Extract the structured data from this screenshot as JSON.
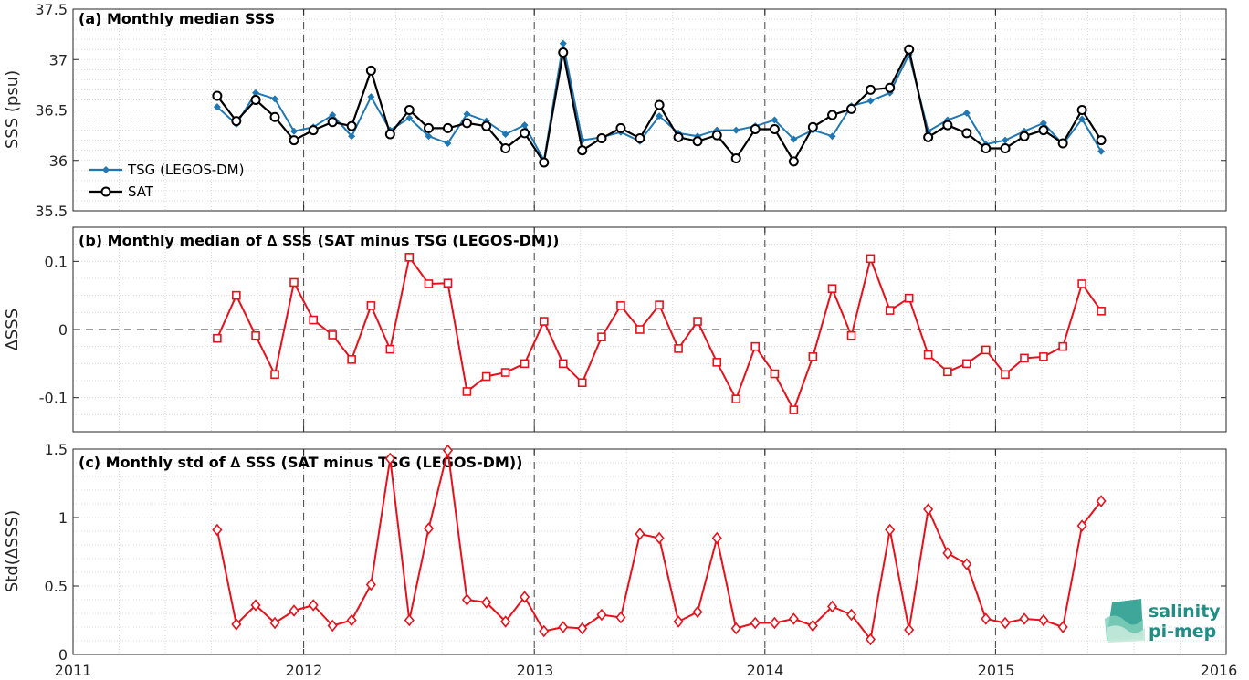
{
  "x_ticks": [
    "2011",
    "2012",
    "2013",
    "2014",
    "2015",
    "2016"
  ],
  "logo": {
    "line1": "salinity",
    "line2": "pi-mep"
  },
  "colors": {
    "tsg": "#1f77b4",
    "sat": "#000000",
    "delta": "#e8101a",
    "grid": "#d0d0d0",
    "axis": "#262626"
  },
  "chart_data": [
    {
      "type": "line",
      "title": "(a) Monthly median SSS",
      "ylabel": "SSS (psu)",
      "xlim": [
        2011,
        2016
      ],
      "ylim": [
        35.5,
        37.5
      ],
      "yticks": [
        "35.5",
        "36",
        "36.5",
        "37",
        "37.5"
      ],
      "grid": true,
      "legend": "left",
      "x": [
        2011.625,
        2011.708,
        2011.792,
        2011.875,
        2011.958,
        2012.042,
        2012.125,
        2012.208,
        2012.292,
        2012.375,
        2012.458,
        2012.542,
        2012.625,
        2012.708,
        2012.792,
        2012.875,
        2012.958,
        2013.042,
        2013.125,
        2013.208,
        2013.292,
        2013.375,
        2013.458,
        2013.542,
        2013.625,
        2013.708,
        2013.792,
        2013.875,
        2013.958,
        2014.042,
        2014.125,
        2014.208,
        2014.292,
        2014.375,
        2014.458,
        2014.542,
        2014.625,
        2014.708,
        2014.792,
        2014.875,
        2014.958,
        2015.042,
        2015.125,
        2015.208,
        2015.292,
        2015.375,
        2015.458
      ],
      "series": [
        {
          "name": "TSG (LEGOS-DM)",
          "marker": "dot",
          "values": [
            36.53,
            36.36,
            36.67,
            36.61,
            36.29,
            36.33,
            36.45,
            36.24,
            36.63,
            36.3,
            36.42,
            36.24,
            36.17,
            36.46,
            36.39,
            36.26,
            36.35,
            36.0,
            37.16,
            36.2,
            36.23,
            36.28,
            36.19,
            36.44,
            36.27,
            36.24,
            36.3,
            36.3,
            36.34,
            36.4,
            36.21,
            36.3,
            36.24,
            36.54,
            36.59,
            36.67,
            37.05,
            36.29,
            36.4,
            36.47,
            36.16,
            36.2,
            36.29,
            36.37,
            36.16,
            36.41,
            36.09
          ]
        },
        {
          "name": "SAT",
          "marker": "circle",
          "values": [
            36.64,
            36.39,
            36.6,
            36.43,
            36.2,
            36.3,
            36.38,
            36.34,
            36.89,
            36.26,
            36.5,
            36.32,
            36.32,
            36.37,
            36.34,
            36.12,
            36.27,
            35.98,
            37.07,
            36.1,
            36.22,
            36.32,
            36.22,
            36.55,
            36.23,
            36.19,
            36.25,
            36.02,
            36.31,
            36.31,
            35.99,
            36.33,
            36.45,
            36.51,
            36.7,
            36.72,
            37.1,
            36.23,
            36.35,
            36.27,
            36.12,
            36.12,
            36.24,
            36.3,
            36.17,
            36.5,
            36.2
          ]
        }
      ]
    },
    {
      "type": "line",
      "title": "(b) Monthly median of ∆ SSS (SAT minus TSG (LEGOS-DM))",
      "ylabel": "∆SSS",
      "xlim": [
        2011,
        2016
      ],
      "ylim": [
        -0.15,
        0.15
      ],
      "yticks": [
        "-0.1",
        "0",
        "0.1"
      ],
      "ytick_values": [
        -0.1,
        0,
        0.1
      ],
      "grid": true,
      "zero_line": true,
      "series": [
        {
          "marker": "square",
          "values": [
            -0.013,
            0.05,
            -0.009,
            -0.066,
            0.069,
            0.014,
            -0.008,
            -0.044,
            0.035,
            -0.029,
            0.106,
            0.067,
            0.068,
            -0.091,
            -0.069,
            -0.063,
            -0.05,
            0.012,
            -0.05,
            -0.078,
            -0.011,
            0.035,
            0.0,
            0.036,
            -0.028,
            0.012,
            -0.048,
            -0.102,
            -0.025,
            -0.065,
            -0.118,
            -0.04,
            0.06,
            -0.009,
            0.104,
            0.028,
            0.046,
            -0.037,
            -0.062,
            -0.05,
            -0.03,
            -0.066,
            -0.042,
            -0.04,
            -0.025,
            0.067,
            0.027
          ]
        }
      ]
    },
    {
      "type": "line",
      "title": "(c) Monthly std of ∆ SSS (SAT minus TSG (LEGOS-DM))",
      "ylabel": "Std(∆SSS)",
      "xlim": [
        2011,
        2016
      ],
      "ylim": [
        0,
        1.5
      ],
      "yticks": [
        "0",
        "0.5",
        "1",
        "1.5"
      ],
      "ytick_values": [
        0,
        0.5,
        1,
        1.5
      ],
      "grid": true,
      "series": [
        {
          "marker": "diamond",
          "values": [
            0.91,
            0.22,
            0.36,
            0.23,
            0.32,
            0.36,
            0.21,
            0.25,
            0.51,
            1.43,
            0.25,
            0.92,
            1.49,
            0.4,
            0.38,
            0.24,
            0.42,
            0.17,
            0.2,
            0.19,
            0.29,
            0.27,
            0.88,
            0.85,
            0.24,
            0.31,
            0.85,
            0.19,
            0.23,
            0.23,
            0.26,
            0.21,
            0.35,
            0.29,
            0.11,
            0.91,
            0.18,
            1.06,
            0.74,
            0.66,
            0.26,
            0.23,
            0.26,
            0.25,
            0.2,
            0.94,
            1.12
          ]
        }
      ]
    }
  ]
}
